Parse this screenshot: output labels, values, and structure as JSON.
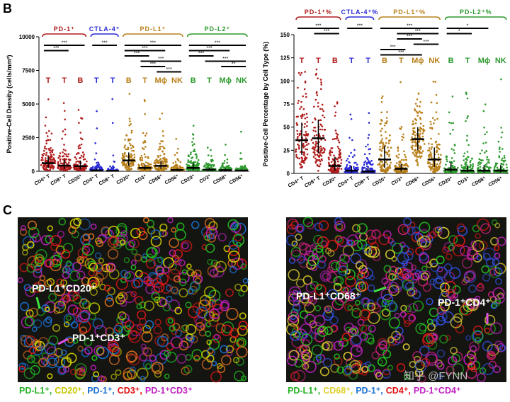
{
  "panel_labels": [
    "B",
    "C"
  ],
  "chart_data": [
    {
      "type": "strip",
      "y_label": "Positive-Cell Density (cells/mm²)",
      "ylim": [
        0,
        10000
      ],
      "yticks": [
        0,
        2500,
        5000,
        7500,
        10000
      ],
      "series": [
        {
          "name": "PD-1⁺",
          "color": "#b01c1c",
          "categories": [
            "CD4⁺ T",
            "CD8⁺ T",
            "CD20⁺"
          ],
          "cell_types": [
            "T",
            "T",
            "B"
          ],
          "values": [
            600,
            420,
            380
          ],
          "q1": [
            250,
            180,
            150
          ],
          "q3": [
            1100,
            850,
            800
          ],
          "comparisons": [
            {
              "pair": [
                0,
                2
              ],
              "label": "***"
            },
            {
              "pair": [
                0,
                1
              ],
              "label": "***"
            }
          ]
        },
        {
          "name": "CTLA-4⁺",
          "color": "#2b2bd6",
          "categories": [
            "CD4⁺ T",
            "CD8⁺ T"
          ],
          "cell_types": [
            "T",
            "T"
          ],
          "values": [
            60,
            30
          ],
          "q1": [
            20,
            10
          ],
          "q3": [
            180,
            90
          ],
          "comparisons": [
            {
              "pair": [
                0,
                1
              ],
              "label": "***"
            }
          ]
        },
        {
          "name": "PD-L1⁺",
          "color": "#b8801a",
          "categories": [
            "CD20⁺",
            "CD3⁺",
            "CD68⁺",
            "CD56⁺"
          ],
          "cell_types": [
            "B",
            "T",
            "Mϕ",
            "NK"
          ],
          "values": [
            800,
            250,
            400,
            90
          ],
          "q1": [
            400,
            100,
            180,
            30
          ],
          "q3": [
            1400,
            500,
            750,
            200
          ],
          "comparisons": [
            {
              "pair": [
                0,
                3
              ],
              "label": "***"
            },
            {
              "pair": [
                0,
                2
              ],
              "label": "***"
            },
            {
              "pair": [
                0,
                1
              ],
              "label": "***"
            },
            {
              "pair": [
                1,
                3
              ],
              "label": "***"
            },
            {
              "pair": [
                1,
                2
              ],
              "label": "***"
            },
            {
              "pair": [
                2,
                3
              ],
              "label": "***"
            }
          ]
        },
        {
          "name": "PD-L2⁺",
          "color": "#2e9a2e",
          "categories": [
            "CD20⁺",
            "CD3⁺",
            "CD68⁺",
            "CD56⁺"
          ],
          "cell_types": [
            "B",
            "T",
            "Mϕ",
            "NK"
          ],
          "values": [
            250,
            110,
            80,
            50
          ],
          "q1": [
            90,
            40,
            30,
            15
          ],
          "q3": [
            600,
            260,
            200,
            120
          ],
          "comparisons": [
            {
              "pair": [
                0,
                3
              ],
              "label": "***"
            },
            {
              "pair": [
                0,
                2
              ],
              "label": "***"
            },
            {
              "pair": [
                0,
                1
              ],
              "label": "***"
            },
            {
              "pair": [
                1,
                3
              ],
              "label": "***"
            },
            {
              "pair": [
                2,
                3
              ],
              "label": "**"
            }
          ]
        }
      ]
    },
    {
      "type": "strip",
      "y_label": "Positive-Cell Percentage by Cell Type (%)",
      "ylim": [
        0,
        150
      ],
      "yticks": [
        0,
        25,
        50,
        75,
        100,
        125,
        150
      ],
      "series": [
        {
          "name": "PD-1⁺%",
          "color": "#b01c1c",
          "categories": [
            "CD4⁺ T",
            "CD8⁺ T",
            "CD20⁺"
          ],
          "cell_types": [
            "T",
            "T",
            "B"
          ],
          "values": [
            36,
            38,
            8
          ],
          "q1": [
            20,
            22,
            3
          ],
          "q3": [
            55,
            58,
            18
          ],
          "comparisons": [
            {
              "pair": [
                0,
                2
              ],
              "label": "***"
            },
            {
              "pair": [
                1,
                2
              ],
              "label": "***"
            }
          ]
        },
        {
          "name": "CTLA-4⁺%",
          "color": "#2b2bd6",
          "categories": [
            "CD4⁺ T",
            "CD8⁺ T"
          ],
          "cell_types": [
            "T",
            "T"
          ],
          "values": [
            3,
            2
          ],
          "q1": [
            1,
            0.8
          ],
          "q3": [
            8,
            6
          ],
          "comparisons": [
            {
              "pair": [
                0,
                1
              ],
              "label": "***"
            }
          ]
        },
        {
          "name": "PD-L1⁺%",
          "color": "#b8801a",
          "categories": [
            "CD20⁺",
            "CD3⁺",
            "CD68⁺",
            "CD56⁺"
          ],
          "cell_types": [
            "B",
            "T",
            "Mϕ",
            "NK"
          ],
          "values": [
            15,
            5,
            37,
            15
          ],
          "q1": [
            6,
            2,
            25,
            7
          ],
          "q3": [
            30,
            10,
            50,
            28
          ],
          "comparisons": [
            {
              "pair": [
                0,
                3
              ],
              "label": "***"
            },
            {
              "pair": [
                1,
                3
              ],
              "label": "***"
            },
            {
              "pair": [
                1,
                2
              ],
              "label": "***"
            },
            {
              "pair": [
                2,
                3
              ],
              "label": "***"
            },
            {
              "pair": [
                0,
                1
              ],
              "label": "***"
            },
            {
              "pair": [
                0,
                2
              ],
              "label": "***"
            }
          ]
        },
        {
          "name": "PD-L2⁺%",
          "color": "#2e9a2e",
          "categories": [
            "CD20⁺",
            "CD3⁺",
            "CD68⁺",
            "CD56⁺"
          ],
          "cell_types": [
            "B",
            "T",
            "Mϕ",
            "NK"
          ],
          "values": [
            4,
            3,
            3,
            3
          ],
          "q1": [
            1.5,
            1,
            1,
            1
          ],
          "q3": [
            12,
            8,
            9,
            9
          ],
          "comparisons": [
            {
              "pair": [
                0,
                2
              ],
              "label": "*"
            },
            {
              "pair": [
                0,
                1
              ],
              "label": "*"
            }
          ]
        }
      ]
    }
  ],
  "images": [
    {
      "labels": [
        "PD-L1⁺CD20⁺",
        "PD-1⁺CD3⁺"
      ],
      "legend": [
        {
          "text": "PD-L1⁺,",
          "color": "#22b022"
        },
        {
          "text": "CD20⁺,",
          "color": "#c8c800"
        },
        {
          "text": "PD-1⁺,",
          "color": "#1a6fd0"
        },
        {
          "text": "CD3⁺,",
          "color": "#e01010"
        },
        {
          "text": "PD-1⁺CD3⁺",
          "color": "#c020c0"
        }
      ]
    },
    {
      "labels": [
        "PD-L1⁺CD68⁺",
        "PD-1⁺CD4⁺"
      ],
      "watermark": "知乎 @FYNN",
      "legend": [
        {
          "text": "PD-L1⁺,",
          "color": "#22b022"
        },
        {
          "text": "CD68⁺,",
          "color": "#e0d030"
        },
        {
          "text": "PD-1⁺,",
          "color": "#1a6fd0"
        },
        {
          "text": "CD4⁺,",
          "color": "#e01010"
        },
        {
          "text": "PD-1⁺CD4⁺",
          "color": "#c020c0"
        }
      ]
    }
  ]
}
